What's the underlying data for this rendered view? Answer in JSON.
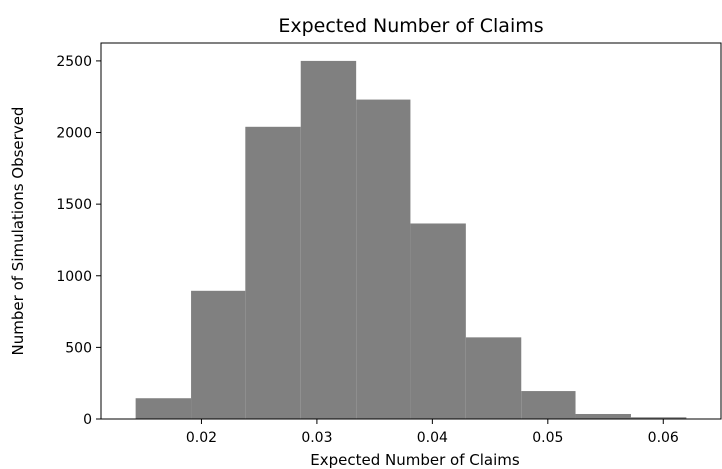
{
  "chart_data": {
    "type": "bar",
    "title": "Expected Number of Claims",
    "xlabel": "Expected Number of Claims",
    "ylabel": "Number of Simulations Observed",
    "bins": [
      {
        "x0": 0.0143,
        "x1": 0.0191,
        "count": 145
      },
      {
        "x0": 0.0191,
        "x1": 0.0238,
        "count": 895
      },
      {
        "x0": 0.0238,
        "x1": 0.0286,
        "count": 2040
      },
      {
        "x0": 0.0286,
        "x1": 0.0334,
        "count": 2500
      },
      {
        "x0": 0.0334,
        "x1": 0.0381,
        "count": 2230
      },
      {
        "x0": 0.0381,
        "x1": 0.0429,
        "count": 1365
      },
      {
        "x0": 0.0429,
        "x1": 0.0477,
        "count": 570
      },
      {
        "x0": 0.0477,
        "x1": 0.0524,
        "count": 195
      },
      {
        "x0": 0.0524,
        "x1": 0.0572,
        "count": 35
      },
      {
        "x0": 0.0572,
        "x1": 0.062,
        "count": 12
      }
    ],
    "xlim": [
      0.0113,
      0.065
    ],
    "ylim": [
      0,
      2625
    ],
    "xticks": [
      0.02,
      0.03,
      0.04,
      0.05,
      0.06
    ],
    "xtick_labels": [
      "0.02",
      "0.03",
      "0.04",
      "0.05",
      "0.06"
    ],
    "yticks": [
      0,
      500,
      1000,
      1500,
      2000,
      2500
    ],
    "ytick_labels": [
      "0",
      "500",
      "1000",
      "1500",
      "2000",
      "2500"
    ],
    "bar_color": "#808080",
    "grid": false,
    "legend": "none"
  }
}
